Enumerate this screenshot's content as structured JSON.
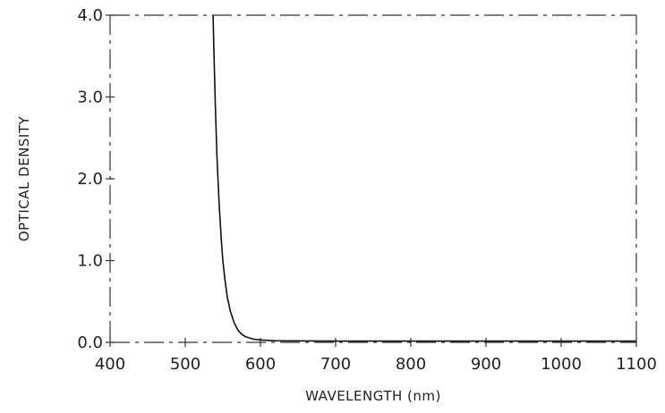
{
  "chart_data": {
    "type": "line",
    "title": "",
    "xlabel": "WAVELENGTH (nm)",
    "ylabel": "OPTICAL DENSITY",
    "xlim": [
      400,
      1100
    ],
    "ylim": [
      0,
      4.0
    ],
    "xticks": [
      "400",
      "500",
      "600",
      "700",
      "800",
      "900",
      "1000",
      "1100"
    ],
    "yticks": [
      "0.0",
      "1.0",
      "2.0",
      "3.0",
      "4.0"
    ],
    "grid": false,
    "legend": "none",
    "series": [
      {
        "x": [
          537,
          538,
          540,
          542,
          545,
          548,
          550,
          553,
          556,
          560,
          565,
          570,
          575,
          580,
          590,
          600,
          620,
          700,
          800,
          900,
          1000,
          1100
        ],
        "y": [
          4.0,
          3.6,
          2.9,
          2.3,
          1.7,
          1.25,
          1.0,
          0.75,
          0.55,
          0.38,
          0.24,
          0.15,
          0.1,
          0.07,
          0.04,
          0.03,
          0.02,
          0.015,
          0.015,
          0.015,
          0.015,
          0.015
        ]
      }
    ]
  }
}
